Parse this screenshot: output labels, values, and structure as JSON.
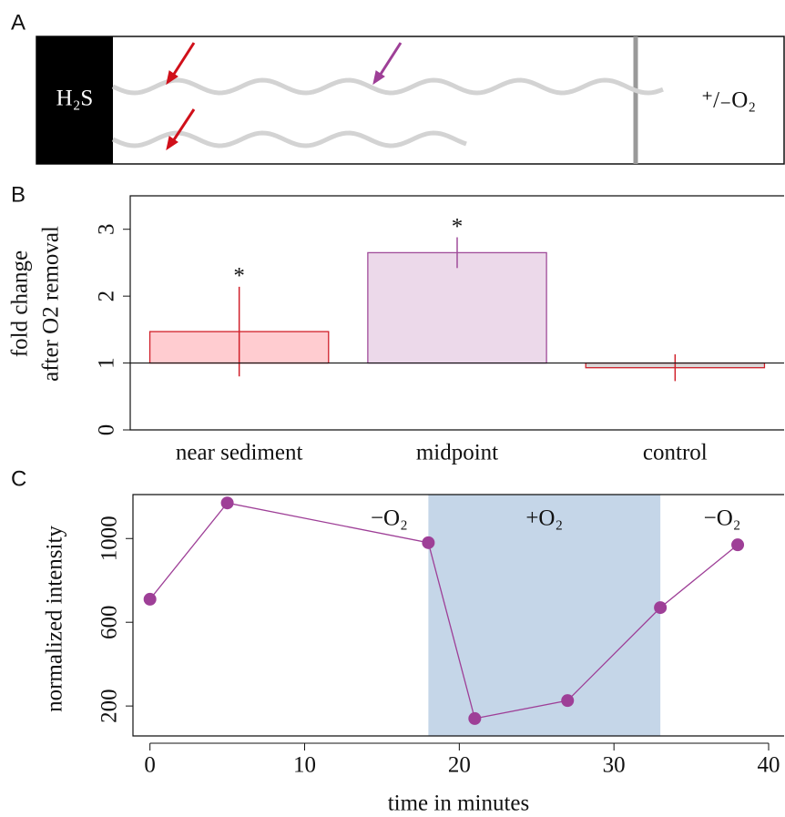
{
  "panel_a": {
    "panel_label": "A",
    "left_label": "H₂S",
    "right_label": "⁺/₋O₂"
  },
  "chart_data": [
    {
      "type": "bar",
      "panel_label": "B",
      "y_label": [
        "fold change",
        "after O2 removal"
      ],
      "categories": [
        "near sediment",
        "midpoint",
        "control"
      ],
      "values": [
        1.47,
        2.65,
        0.93
      ],
      "errors": [
        0.67,
        0.23,
        0.2
      ],
      "significance": [
        "*",
        "*",
        null
      ],
      "colors": [
        "#ffccd0",
        "#ecd9ea",
        "#d9d9d9"
      ],
      "edge_colors": [
        "#d0202a",
        "#a04c9a",
        "#d0202a"
      ],
      "baseline": 1,
      "ylim": [
        0,
        3.5
      ],
      "yticks": [
        0,
        1,
        2,
        3
      ]
    },
    {
      "type": "line",
      "panel_label": "C",
      "x_label": "time in minutes",
      "y_label": "normalized intensity",
      "x": [
        0,
        5,
        18,
        21,
        27,
        33,
        38
      ],
      "values": [
        710,
        1170,
        980,
        140,
        226,
        670,
        970
      ],
      "color": "#9e3f97",
      "shaded": [
        18,
        33
      ],
      "shade_color": "#c5d6e8",
      "annotations": [
        "−O₂",
        "+O₂",
        "−O₂"
      ],
      "xlim": [
        -1.1,
        41
      ],
      "xticks": [
        0,
        10,
        20,
        30,
        40
      ],
      "ylim": [
        57,
        1210
      ],
      "yticks": [
        200,
        600,
        1000
      ]
    }
  ]
}
